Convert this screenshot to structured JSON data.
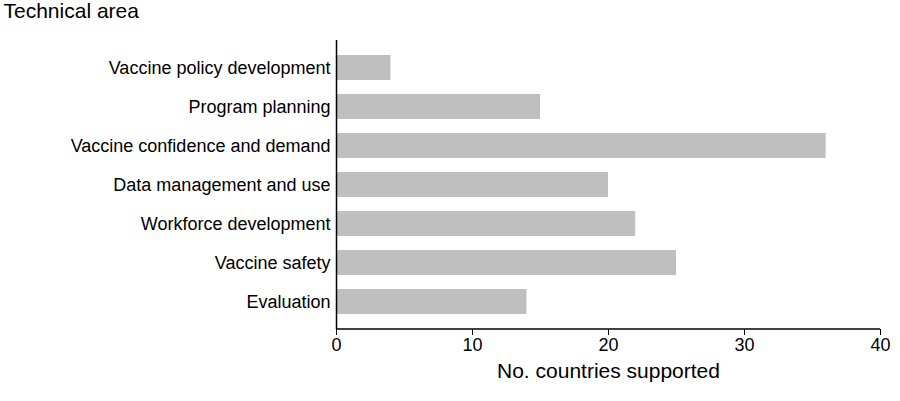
{
  "chart_data": {
    "type": "bar",
    "orientation": "horizontal",
    "y_label": "Technical area",
    "x_label": "No. countries supported",
    "categories": [
      "Vaccine policy development",
      "Program planning",
      "Vaccine confidence and demand",
      "Data management and use",
      "Workforce development",
      "Vaccine safety",
      "Evaluation"
    ],
    "values": [
      4,
      15,
      36,
      20,
      22,
      25,
      14
    ],
    "color": "#bfbfbf",
    "xlim": [
      0,
      40
    ],
    "xticks": [
      0,
      10,
      20,
      30,
      40
    ],
    "grid": false
  }
}
